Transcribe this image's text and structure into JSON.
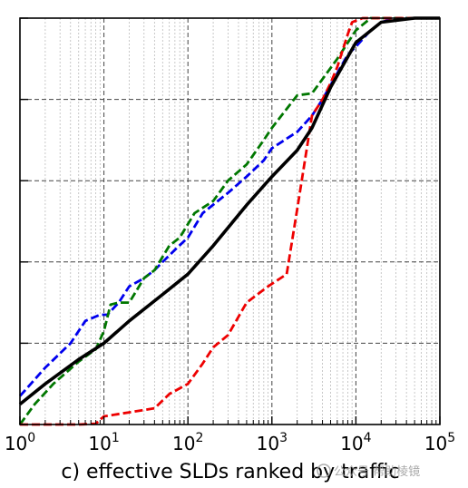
{
  "chart_data": {
    "type": "line",
    "title": "",
    "caption": "c) effective SLDs ranked by traffic",
    "xlabel": "",
    "ylabel": "",
    "xscale": "log",
    "xlim": [
      1,
      100000
    ],
    "ylim": [
      0,
      1
    ],
    "xticks": [
      1,
      10,
      100,
      1000,
      10000,
      100000
    ],
    "xtick_labels": [
      {
        "base": "10",
        "exp": "0"
      },
      {
        "base": "10",
        "exp": "1"
      },
      {
        "base": "10",
        "exp": "2"
      },
      {
        "base": "10",
        "exp": "3"
      },
      {
        "base": "10",
        "exp": "4"
      },
      {
        "base": "10",
        "exp": "5"
      }
    ],
    "ytick_values": [
      0,
      0.2,
      0.4,
      0.6,
      0.8,
      1.0
    ],
    "grid": true,
    "legend": false,
    "series": [
      {
        "color": "#000000",
        "style": "solid",
        "points": [
          [
            1,
            0.05
          ],
          [
            2,
            0.1
          ],
          [
            5,
            0.16
          ],
          [
            10,
            0.2
          ],
          [
            20,
            0.255
          ],
          [
            50,
            0.32
          ],
          [
            100,
            0.37
          ],
          [
            200,
            0.44
          ],
          [
            500,
            0.54
          ],
          [
            1000,
            0.61
          ],
          [
            2000,
            0.675
          ],
          [
            3000,
            0.73
          ],
          [
            5000,
            0.83
          ],
          [
            10000,
            0.94
          ],
          [
            20000,
            0.99
          ],
          [
            50000,
            1.0
          ],
          [
            100000,
            1.0
          ]
        ]
      },
      {
        "color": "#0000ee",
        "style": "dashed",
        "points": [
          [
            1,
            0.07
          ],
          [
            2,
            0.14
          ],
          [
            4,
            0.2
          ],
          [
            6,
            0.255
          ],
          [
            9,
            0.27
          ],
          [
            11,
            0.27
          ],
          [
            15,
            0.3
          ],
          [
            20,
            0.34
          ],
          [
            30,
            0.36
          ],
          [
            40,
            0.38
          ],
          [
            50,
            0.4
          ],
          [
            70,
            0.43
          ],
          [
            100,
            0.46
          ],
          [
            150,
            0.52
          ],
          [
            300,
            0.57
          ],
          [
            500,
            0.61
          ],
          [
            800,
            0.65
          ],
          [
            1000,
            0.68
          ],
          [
            2000,
            0.72
          ],
          [
            3000,
            0.76
          ],
          [
            4000,
            0.8
          ],
          [
            8000,
            0.91
          ],
          [
            10000,
            0.93
          ],
          [
            15000,
            0.97
          ],
          [
            20000,
            0.99
          ],
          [
            30000,
            1.0
          ],
          [
            100000,
            1.0
          ]
        ]
      },
      {
        "color": "#007700",
        "style": "dashed",
        "points": [
          [
            1,
            0.0
          ],
          [
            1.5,
            0.05
          ],
          [
            2.5,
            0.1
          ],
          [
            5,
            0.155
          ],
          [
            8,
            0.185
          ],
          [
            10,
            0.23
          ],
          [
            12,
            0.295
          ],
          [
            15,
            0.3
          ],
          [
            20,
            0.3
          ],
          [
            30,
            0.36
          ],
          [
            40,
            0.38
          ],
          [
            60,
            0.44
          ],
          [
            80,
            0.46
          ],
          [
            120,
            0.52
          ],
          [
            200,
            0.55
          ],
          [
            300,
            0.6
          ],
          [
            500,
            0.64
          ],
          [
            800,
            0.7
          ],
          [
            1000,
            0.73
          ],
          [
            2000,
            0.81
          ],
          [
            3000,
            0.815
          ],
          [
            4000,
            0.85
          ],
          [
            6000,
            0.9
          ],
          [
            10000,
            0.97
          ],
          [
            15000,
            1.0
          ],
          [
            100000,
            1.0
          ]
        ]
      },
      {
        "color": "#ee0000",
        "style": "dashed",
        "points": [
          [
            1,
            0.0
          ],
          [
            5,
            0.0
          ],
          [
            8,
            0.002
          ],
          [
            10,
            0.02
          ],
          [
            20,
            0.03
          ],
          [
            40,
            0.04
          ],
          [
            60,
            0.075
          ],
          [
            100,
            0.1
          ],
          [
            150,
            0.15
          ],
          [
            200,
            0.19
          ],
          [
            300,
            0.22
          ],
          [
            500,
            0.3
          ],
          [
            900,
            0.34
          ],
          [
            1500,
            0.37
          ],
          [
            2000,
            0.53
          ],
          [
            3000,
            0.76
          ],
          [
            4000,
            0.8
          ],
          [
            5000,
            0.84
          ],
          [
            6000,
            0.88
          ],
          [
            8000,
            0.96
          ],
          [
            9000,
            0.99
          ],
          [
            12000,
            1.0
          ],
          [
            100000,
            1.0
          ]
        ]
      }
    ]
  },
  "watermark": "公众号 帮助棱镜"
}
